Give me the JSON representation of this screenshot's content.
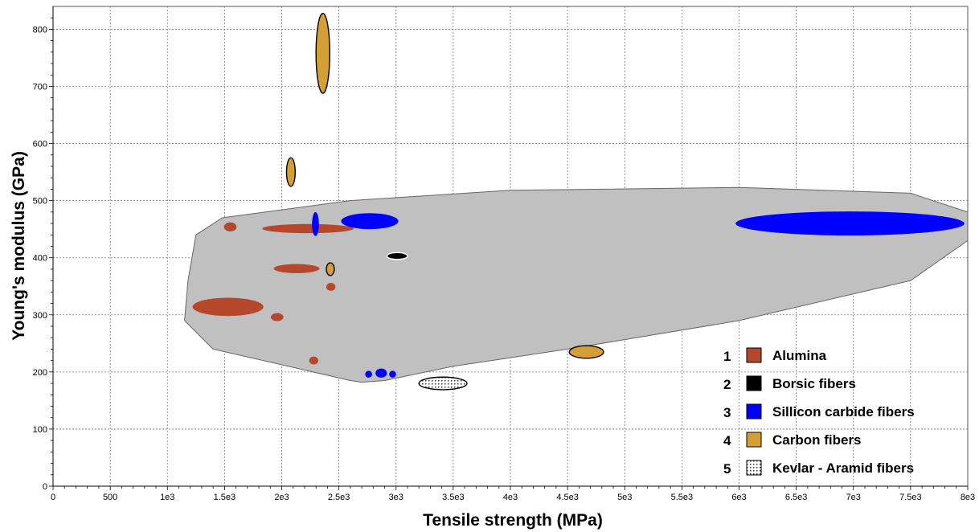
{
  "chart_data": {
    "type": "scatter",
    "xlabel": "Tensile strength (MPa)",
    "ylabel": "Young's modulus (GPa)",
    "xlim": [
      0,
      8000
    ],
    "ylim": [
      0,
      840
    ],
    "grid": true,
    "x_ticks": [
      0,
      500,
      1000,
      1500,
      2000,
      2500,
      3000,
      3500,
      4000,
      4500,
      5000,
      5500,
      6000,
      6500,
      7000,
      7500,
      8000
    ],
    "x_tick_labels": [
      "0",
      "500",
      "1e3",
      "1.5e3",
      "2e3",
      "2.5e3",
      "3e3",
      "3.5e3",
      "4e3",
      "4.5e3",
      "5e3",
      "5.5e3",
      "6e3",
      "6.5e3",
      "7e3",
      "7.5e3",
      "8e3"
    ],
    "y_ticks": [
      0,
      100,
      200,
      300,
      400,
      500,
      600,
      700,
      800
    ],
    "y_tick_labels": [
      "0",
      "100",
      "200",
      "300",
      "400",
      "500",
      "600",
      "700",
      "800"
    ],
    "envelope": {
      "color": "#c0c0c0",
      "points": [
        [
          1150,
          290
        ],
        [
          1180,
          360
        ],
        [
          1250,
          440
        ],
        [
          1480,
          470
        ],
        [
          2600,
          500
        ],
        [
          4000,
          518
        ],
        [
          6000,
          523
        ],
        [
          7500,
          513
        ],
        [
          8000,
          480
        ],
        [
          8000,
          430
        ],
        [
          7500,
          360
        ],
        [
          6000,
          290
        ],
        [
          4500,
          240
        ],
        [
          3500,
          210
        ],
        [
          2900,
          185
        ],
        [
          2700,
          182
        ],
        [
          2600,
          185
        ],
        [
          1400,
          240
        ],
        [
          1150,
          290
        ]
      ]
    },
    "legend_position": "bottom-right",
    "series": [
      {
        "name": "Alumina",
        "number": "1",
        "color": "#b5472a",
        "regions": [
          {
            "x": 1550,
            "y": 454,
            "rx": 55,
            "ry": 8
          },
          {
            "x": 2230,
            "y": 451,
            "rx": 400,
            "ry": 8
          },
          {
            "x": 2130,
            "y": 381,
            "rx": 200,
            "ry": 8
          },
          {
            "x": 1530,
            "y": 314,
            "rx": 310,
            "ry": 16
          },
          {
            "x": 1960,
            "y": 296,
            "rx": 55,
            "ry": 7
          },
          {
            "x": 2430,
            "y": 349,
            "rx": 40,
            "ry": 7
          },
          {
            "x": 2280,
            "y": 220,
            "rx": 40,
            "ry": 7
          }
        ]
      },
      {
        "name": "Borsic fibers",
        "number": "2",
        "color": "#000000",
        "regions": [
          {
            "x": 3010,
            "y": 403,
            "rx": 90,
            "ry": 6
          }
        ]
      },
      {
        "name": "Sillicon carbide fibers",
        "number": "3",
        "color": "#0000ff",
        "regions": [
          {
            "x": 6970,
            "y": 460,
            "rx": 1000,
            "ry": 21
          },
          {
            "x": 2770,
            "y": 464,
            "rx": 250,
            "ry": 14
          },
          {
            "x": 2295,
            "y": 459,
            "rx": 30,
            "ry": 21
          },
          {
            "x": 2760,
            "y": 196,
            "rx": 30,
            "ry": 6
          },
          {
            "x": 2870,
            "y": 198,
            "rx": 50,
            "ry": 8
          },
          {
            "x": 2970,
            "y": 196,
            "rx": 30,
            "ry": 6
          }
        ]
      },
      {
        "name": "Carbon fibers",
        "number": "4",
        "color": "#d4a035",
        "regions": [
          {
            "x": 2360,
            "y": 758,
            "rx": 60,
            "ry": 70
          },
          {
            "x": 2080,
            "y": 550,
            "rx": 38,
            "ry": 25
          },
          {
            "x": 2425,
            "y": 380,
            "rx": 35,
            "ry": 11
          },
          {
            "x": 4665,
            "y": 235,
            "rx": 150,
            "ry": 11
          }
        ]
      },
      {
        "name": "Kevlar - Aramid fibers",
        "number": "5",
        "color": "#ffffff",
        "pattern": "dotted",
        "regions": [
          {
            "x": 3410,
            "y": 180,
            "rx": 210,
            "ry": 11
          }
        ]
      }
    ]
  }
}
